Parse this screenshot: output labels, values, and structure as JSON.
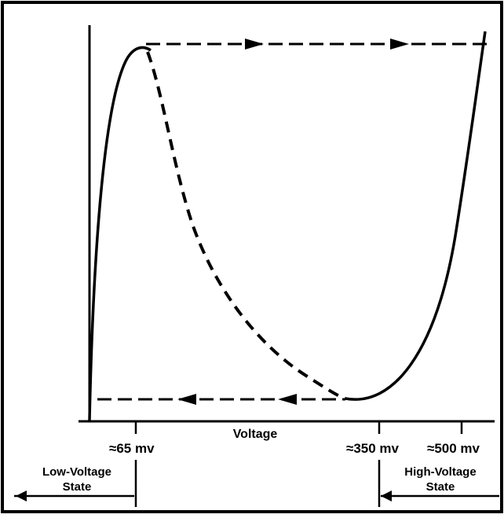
{
  "chart_data": {
    "type": "line",
    "title": "",
    "xlabel": "Voltage",
    "ylabel": "",
    "grid": false,
    "tick_labels": [
      "≈65 mv",
      "≈350 mv",
      "≈500 mv"
    ],
    "states": {
      "low": {
        "line1": "Low-Voltage",
        "line2": "State"
      },
      "high": {
        "line1": "High-Voltage",
        "line2": "State"
      }
    },
    "series": [
      {
        "style": "solid",
        "values": []
      },
      {
        "style": "dashed",
        "values": []
      }
    ],
    "colors": {
      "ink": "#000000",
      "background": "#ffffff"
    }
  }
}
